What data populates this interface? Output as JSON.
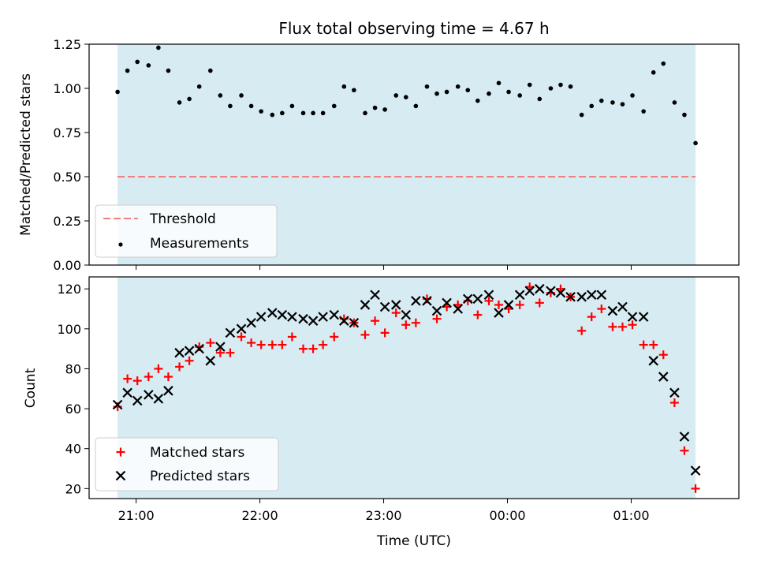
{
  "figure": {
    "title": "Flux total observing time = 4.67 h",
    "xlabel": "Time (UTC)",
    "xtick_labels": [
      "21:00",
      "22:00",
      "23:00",
      "00:00",
      "01:00"
    ],
    "colors": {
      "shade": "#add8e6",
      "threshold": "#f08080",
      "measurements": "#000000",
      "matched": "#ff0000",
      "predicted": "#000000"
    }
  },
  "chart_data": [
    {
      "type": "scatter",
      "ylabel": "Matched/Predicted stars",
      "ylim": [
        0,
        1.25
      ],
      "yticks": [
        "0.00",
        "0.25",
        "0.50",
        "0.75",
        "1.00",
        "1.25"
      ],
      "x_range_hours": [
        -0.38,
        4.87
      ],
      "shaded_span_hours": [
        -0.15,
        4.52
      ],
      "threshold": {
        "label": "Threshold",
        "value": 0.5
      },
      "legend": {
        "position": "lower-left",
        "entries": [
          "Threshold",
          "Measurements"
        ]
      },
      "series": [
        {
          "name": "Measurements",
          "x": [
            -0.15,
            -0.07,
            0.01,
            0.1,
            0.18,
            0.26,
            0.35,
            0.43,
            0.51,
            0.6,
            0.68,
            0.76,
            0.85,
            0.93,
            1.01,
            1.1,
            1.18,
            1.26,
            1.35,
            1.43,
            1.51,
            1.6,
            1.68,
            1.76,
            1.85,
            1.93,
            2.01,
            2.1,
            2.18,
            2.26,
            2.35,
            2.43,
            2.51,
            2.6,
            2.68,
            2.76,
            2.85,
            2.93,
            3.01,
            3.1,
            3.18,
            3.26,
            3.35,
            3.43,
            3.51,
            3.6,
            3.68,
            3.76,
            3.85,
            3.93,
            4.01,
            4.1,
            4.18,
            4.26,
            4.35,
            4.43,
            4.52
          ],
          "y": [
            0.98,
            1.1,
            1.15,
            1.13,
            1.23,
            1.1,
            0.92,
            0.94,
            1.01,
            1.1,
            0.96,
            0.9,
            0.96,
            0.9,
            0.87,
            0.85,
            0.86,
            0.9,
            0.86,
            0.86,
            0.86,
            0.9,
            1.01,
            0.99,
            0.86,
            0.89,
            0.88,
            0.96,
            0.95,
            0.9,
            1.01,
            0.97,
            0.98,
            1.01,
            0.99,
            0.93,
            0.97,
            1.03,
            0.98,
            0.96,
            1.02,
            0.94,
            1.0,
            1.02,
            1.01,
            0.85,
            0.9,
            0.93,
            0.92,
            0.91,
            0.96,
            0.87,
            1.09,
            1.14,
            0.92,
            0.85,
            0.69
          ]
        }
      ]
    },
    {
      "type": "scatter",
      "ylabel": "Count",
      "ylim": [
        15,
        126
      ],
      "yticks": [
        "20",
        "40",
        "60",
        "80",
        "100",
        "120"
      ],
      "x_range_hours": [
        -0.38,
        4.87
      ],
      "shaded_span_hours": [
        -0.15,
        4.52
      ],
      "legend": {
        "position": "lower-left",
        "entries": [
          "Matched stars",
          "Predicted stars"
        ]
      },
      "series": [
        {
          "name": "Matched stars",
          "marker": "+",
          "x": [
            -0.15,
            -0.07,
            0.01,
            0.1,
            0.18,
            0.26,
            0.35,
            0.43,
            0.51,
            0.6,
            0.68,
            0.76,
            0.85,
            0.93,
            1.01,
            1.1,
            1.18,
            1.26,
            1.35,
            1.43,
            1.51,
            1.6,
            1.68,
            1.76,
            1.85,
            1.93,
            2.01,
            2.1,
            2.18,
            2.26,
            2.35,
            2.43,
            2.51,
            2.6,
            2.68,
            2.76,
            2.85,
            2.93,
            3.01,
            3.1,
            3.18,
            3.26,
            3.35,
            3.43,
            3.51,
            3.6,
            3.68,
            3.76,
            3.85,
            3.93,
            4.01,
            4.1,
            4.18,
            4.26,
            4.35,
            4.43,
            4.52
          ],
          "y": [
            61,
            75,
            74,
            76,
            80,
            76,
            81,
            84,
            91,
            93,
            88,
            88,
            96,
            93,
            92,
            92,
            92,
            96,
            90,
            90,
            92,
            96,
            105,
            103,
            97,
            104,
            98,
            108,
            102,
            103,
            115,
            105,
            111,
            112,
            114,
            107,
            114,
            112,
            110,
            112,
            121,
            113,
            118,
            120,
            116,
            99,
            106,
            110,
            101,
            101,
            102,
            92,
            92,
            87,
            63,
            39,
            20
          ]
        },
        {
          "name": "Predicted stars",
          "marker": "x",
          "x": [
            -0.15,
            -0.07,
            0.01,
            0.1,
            0.18,
            0.26,
            0.35,
            0.43,
            0.51,
            0.6,
            0.68,
            0.76,
            0.85,
            0.93,
            1.01,
            1.1,
            1.18,
            1.26,
            1.35,
            1.43,
            1.51,
            1.6,
            1.68,
            1.76,
            1.85,
            1.93,
            2.01,
            2.1,
            2.18,
            2.26,
            2.35,
            2.43,
            2.51,
            2.6,
            2.68,
            2.76,
            2.85,
            2.93,
            3.01,
            3.1,
            3.18,
            3.26,
            3.35,
            3.43,
            3.51,
            3.6,
            3.68,
            3.76,
            3.85,
            3.93,
            4.01,
            4.1,
            4.18,
            4.26,
            4.35,
            4.43,
            4.52
          ],
          "y": [
            62,
            68,
            64,
            67,
            65,
            69,
            88,
            89,
            90,
            84,
            91,
            98,
            100,
            103,
            106,
            108,
            107,
            106,
            105,
            104,
            106,
            107,
            104,
            103,
            112,
            117,
            111,
            112,
            107,
            114,
            114,
            109,
            113,
            110,
            115,
            115,
            117,
            108,
            112,
            117,
            119,
            120,
            119,
            118,
            116,
            116,
            117,
            117,
            109,
            111,
            106,
            106,
            84,
            76,
            68,
            46,
            29
          ]
        }
      ]
    }
  ]
}
